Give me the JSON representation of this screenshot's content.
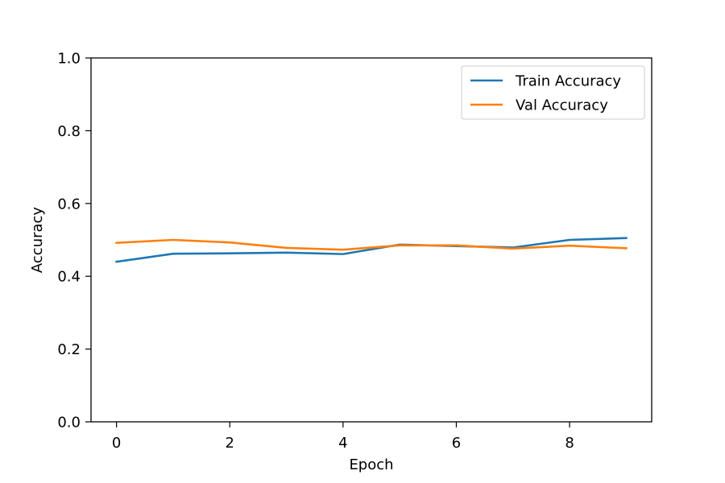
{
  "chart_data": {
    "type": "line",
    "xlabel": "Epoch",
    "ylabel": "Accuracy",
    "xlim": [
      -0.45,
      9.45
    ],
    "ylim": [
      0.0,
      1.0
    ],
    "xticks": [
      0,
      2,
      4,
      6,
      8
    ],
    "xtick_labels": [
      "0",
      "2",
      "4",
      "6",
      "8"
    ],
    "yticks": [
      0.0,
      0.2,
      0.4,
      0.6,
      0.8,
      1.0
    ],
    "ytick_labels": [
      "0.0",
      "0.2",
      "0.4",
      "0.6",
      "0.8",
      "1.0"
    ],
    "x": [
      0,
      1,
      2,
      3,
      4,
      5,
      6,
      7,
      8,
      9
    ],
    "series": [
      {
        "name": "Train Accuracy",
        "color": "#1f77b4",
        "values": [
          0.44,
          0.462,
          0.463,
          0.465,
          0.461,
          0.487,
          0.483,
          0.479,
          0.5,
          0.505
        ]
      },
      {
        "name": "Val Accuracy",
        "color": "#ff7f0e",
        "values": [
          0.492,
          0.5,
          0.493,
          0.478,
          0.473,
          0.485,
          0.485,
          0.476,
          0.484,
          0.477
        ]
      }
    ],
    "grid": false,
    "legend": "top-right"
  }
}
